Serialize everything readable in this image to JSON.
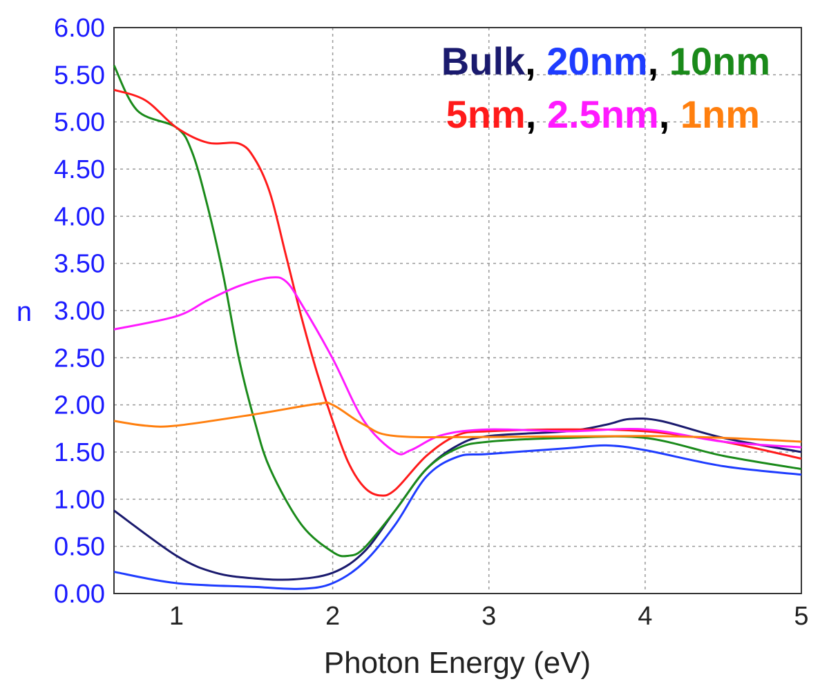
{
  "chart_data": {
    "type": "line",
    "title": "",
    "xlabel": "Photon Energy (eV)",
    "ylabel": "n",
    "xlim": [
      0.6,
      5
    ],
    "ylim": [
      0,
      6
    ],
    "xticks": [
      "1",
      "2",
      "3",
      "4",
      "5"
    ],
    "xtick_values": [
      1,
      2,
      3,
      4,
      5
    ],
    "yticks": [
      "0.00",
      "0.50",
      "1.00",
      "1.50",
      "2.00",
      "2.50",
      "3.00",
      "3.50",
      "4.00",
      "4.50",
      "5.00",
      "5.50",
      "6.00"
    ],
    "ytick_values": [
      0,
      0.5,
      1,
      1.5,
      2,
      2.5,
      3,
      3.5,
      4,
      4.5,
      5,
      5.5,
      6
    ],
    "grid": true,
    "legend_placement": "top-right",
    "legend_separator": ", ",
    "series": [
      {
        "name": "Bulk",
        "color": "#1a1a6e",
        "x": [
          0.6,
          1.0,
          1.25,
          1.5,
          1.75,
          2.0,
          2.2,
          2.4,
          2.6,
          2.8,
          3.0,
          3.5,
          3.75,
          3.9,
          4.1,
          4.5,
          5.0
        ],
        "y": [
          0.88,
          0.4,
          0.22,
          0.16,
          0.15,
          0.22,
          0.44,
          0.88,
          1.32,
          1.57,
          1.67,
          1.72,
          1.79,
          1.85,
          1.83,
          1.65,
          1.5
        ]
      },
      {
        "name": "20nm",
        "color": "#1e3cff",
        "x": [
          0.6,
          1.0,
          1.5,
          1.8,
          2.0,
          2.2,
          2.4,
          2.6,
          2.8,
          3.0,
          3.5,
          3.75,
          4.0,
          4.5,
          5.0
        ],
        "y": [
          0.23,
          0.11,
          0.07,
          0.05,
          0.11,
          0.33,
          0.73,
          1.24,
          1.45,
          1.48,
          1.54,
          1.57,
          1.52,
          1.35,
          1.26
        ]
      },
      {
        "name": "10nm",
        "color": "#1a8a1a",
        "x": [
          0.6,
          0.75,
          1.0,
          1.1,
          1.2,
          1.3,
          1.4,
          1.5,
          1.6,
          1.8,
          2.0,
          2.1,
          2.2,
          2.4,
          2.6,
          2.8,
          3.0,
          3.5,
          4.0,
          4.5,
          5.0
        ],
        "y": [
          5.6,
          5.12,
          4.94,
          4.68,
          4.1,
          3.37,
          2.49,
          1.83,
          1.32,
          0.73,
          0.44,
          0.4,
          0.48,
          0.88,
          1.32,
          1.54,
          1.61,
          1.65,
          1.65,
          1.46,
          1.32
        ]
      },
      {
        "name": "5nm",
        "color": "#ff1a1a",
        "x": [
          0.6,
          0.8,
          1.0,
          1.2,
          1.4,
          1.5,
          1.6,
          1.7,
          1.8,
          1.9,
          2.0,
          2.1,
          2.2,
          2.3,
          2.4,
          2.6,
          2.8,
          3.0,
          3.5,
          4.0,
          4.5,
          5.0
        ],
        "y": [
          5.34,
          5.23,
          4.94,
          4.78,
          4.77,
          4.61,
          4.24,
          3.59,
          2.93,
          2.34,
          1.83,
          1.39,
          1.13,
          1.04,
          1.1,
          1.46,
          1.68,
          1.72,
          1.74,
          1.72,
          1.61,
          1.43
        ]
      },
      {
        "name": "2.5nm",
        "color": "#ff1aff",
        "x": [
          0.6,
          1.0,
          1.2,
          1.4,
          1.6,
          1.7,
          1.8,
          2.0,
          2.2,
          2.4,
          2.5,
          2.7,
          3.0,
          3.5,
          4.0,
          4.5,
          5.0
        ],
        "y": [
          2.8,
          2.94,
          3.11,
          3.26,
          3.35,
          3.31,
          3.07,
          2.49,
          1.83,
          1.5,
          1.52,
          1.68,
          1.74,
          1.72,
          1.74,
          1.61,
          1.55
        ]
      },
      {
        "name": "1nm",
        "color": "#ff7f0e",
        "x": [
          0.6,
          0.8,
          1.0,
          1.5,
          1.9,
          2.0,
          2.2,
          2.4,
          3.0,
          4.0,
          4.5,
          5.0
        ],
        "y": [
          1.83,
          1.78,
          1.78,
          1.9,
          2.01,
          2.0,
          1.79,
          1.67,
          1.66,
          1.67,
          1.65,
          1.61
        ]
      }
    ]
  }
}
